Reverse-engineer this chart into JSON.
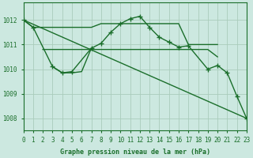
{
  "background_color": "#cce8e0",
  "grid_color": "#aaccbb",
  "line_color": "#1a6e2a",
  "xlabel": "Graphe pression niveau de la mer (hPa)",
  "xlim": [
    0,
    23
  ],
  "ylim": [
    1007.5,
    1012.7
  ],
  "yticks": [
    1008,
    1009,
    1010,
    1011,
    1012
  ],
  "xticks": [
    0,
    1,
    2,
    3,
    4,
    5,
    6,
    7,
    8,
    9,
    10,
    11,
    12,
    13,
    14,
    15,
    16,
    17,
    18,
    19,
    20,
    21,
    22,
    23
  ],
  "figsize": [
    3.2,
    2.0
  ],
  "dpi": 100,
  "series": [
    {
      "x": [
        0,
        1,
        2,
        3,
        4,
        5,
        6,
        7,
        8,
        9,
        10,
        11,
        12,
        13,
        14,
        15,
        16,
        17,
        18,
        19,
        20
      ],
      "y": [
        1012.0,
        1011.7,
        1011.7,
        1011.7,
        1011.7,
        1011.7,
        1011.7,
        1011.7,
        1011.85,
        1011.85,
        1011.85,
        1011.85,
        1011.85,
        1011.85,
        1011.85,
        1011.85,
        1011.85,
        1011.0,
        1011.0,
        1011.0,
        1011.0
      ],
      "marker": false,
      "lw": 1.0
    },
    {
      "x": [
        2,
        3,
        4,
        5,
        6,
        7,
        8,
        9,
        10,
        11,
        12,
        13,
        14,
        15,
        16,
        17,
        18,
        19,
        20
      ],
      "y": [
        1010.8,
        1010.8,
        1010.8,
        1010.8,
        1010.8,
        1010.8,
        1010.8,
        1010.8,
        1010.8,
        1010.8,
        1010.8,
        1010.8,
        1010.8,
        1010.8,
        1010.8,
        1010.8,
        1010.8,
        1010.8,
        1010.5
      ],
      "marker": false,
      "lw": 1.0
    },
    {
      "x": [
        0,
        1,
        3,
        4,
        5,
        7,
        8,
        9,
        10,
        11,
        12,
        13,
        14,
        15,
        16,
        17,
        19,
        20,
        21,
        22,
        23
      ],
      "y": [
        1012.0,
        1011.7,
        1010.1,
        1009.85,
        1009.9,
        1010.85,
        1011.05,
        1011.5,
        1011.85,
        1012.05,
        1012.15,
        1011.7,
        1011.3,
        1011.1,
        1010.9,
        1010.95,
        1010.0,
        1010.15,
        1009.85,
        1008.9,
        1008.0
      ],
      "marker": true,
      "lw": 1.0
    },
    {
      "x": [
        3,
        4,
        5,
        6,
        7
      ],
      "y": [
        1010.1,
        1009.85,
        1009.85,
        1009.9,
        1010.85
      ],
      "marker": false,
      "lw": 1.0
    },
    {
      "x": [
        0,
        23
      ],
      "y": [
        1012.0,
        1008.0
      ],
      "marker": false,
      "lw": 1.0
    }
  ]
}
